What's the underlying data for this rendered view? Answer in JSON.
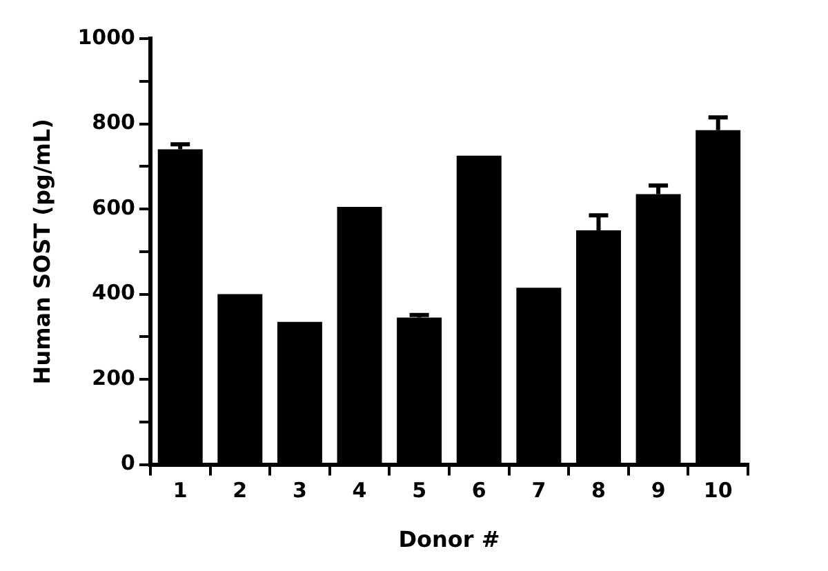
{
  "chart_data": {
    "type": "bar",
    "xlabel": "Donor #",
    "ylabel": "Human SOST (pg/mL)",
    "categories": [
      "1",
      "2",
      "3",
      "4",
      "5",
      "6",
      "7",
      "8",
      "9",
      "10"
    ],
    "values": [
      740,
      400,
      335,
      605,
      345,
      725,
      415,
      550,
      635,
      785
    ],
    "errors": [
      12,
      null,
      null,
      null,
      6,
      null,
      null,
      35,
      20,
      30
    ],
    "color": "#000000",
    "ylim": [
      0,
      1000
    ],
    "yticks": [
      0,
      {
        "value": 100,
        "label": null
      },
      200,
      {
        "value": 300,
        "label": null
      },
      400,
      {
        "value": 500,
        "label": null
      },
      600,
      {
        "value": 700,
        "label": null
      },
      800,
      {
        "value": 900,
        "label": null
      },
      1000
    ],
    "grid": false,
    "legend": false
  }
}
